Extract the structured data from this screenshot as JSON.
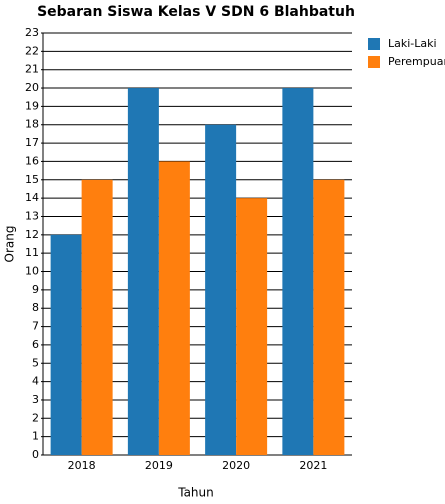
{
  "chart_data": {
    "type": "bar",
    "title": "Sebaran Siswa Kelas V SDN 6 Blahbatuh",
    "x_label": "Tahun",
    "y_label": "Orang",
    "categories": [
      "2018",
      "2019",
      "2020",
      "2021"
    ],
    "series": [
      {
        "name": "Laki-Laki",
        "color": "#1f77b4",
        "values": [
          12,
          20,
          18,
          20
        ]
      },
      {
        "name": "Perempuan",
        "color": "#ff7f0e",
        "values": [
          15,
          16,
          14,
          15
        ]
      }
    ],
    "ylim": [
      0,
      23
    ],
    "yticks": [
      0,
      1,
      2,
      3,
      4,
      5,
      6,
      7,
      8,
      9,
      10,
      11,
      12,
      13,
      14,
      15,
      16,
      17,
      18,
      19,
      20,
      21,
      22,
      23
    ],
    "grid": true,
    "legend": "right"
  }
}
